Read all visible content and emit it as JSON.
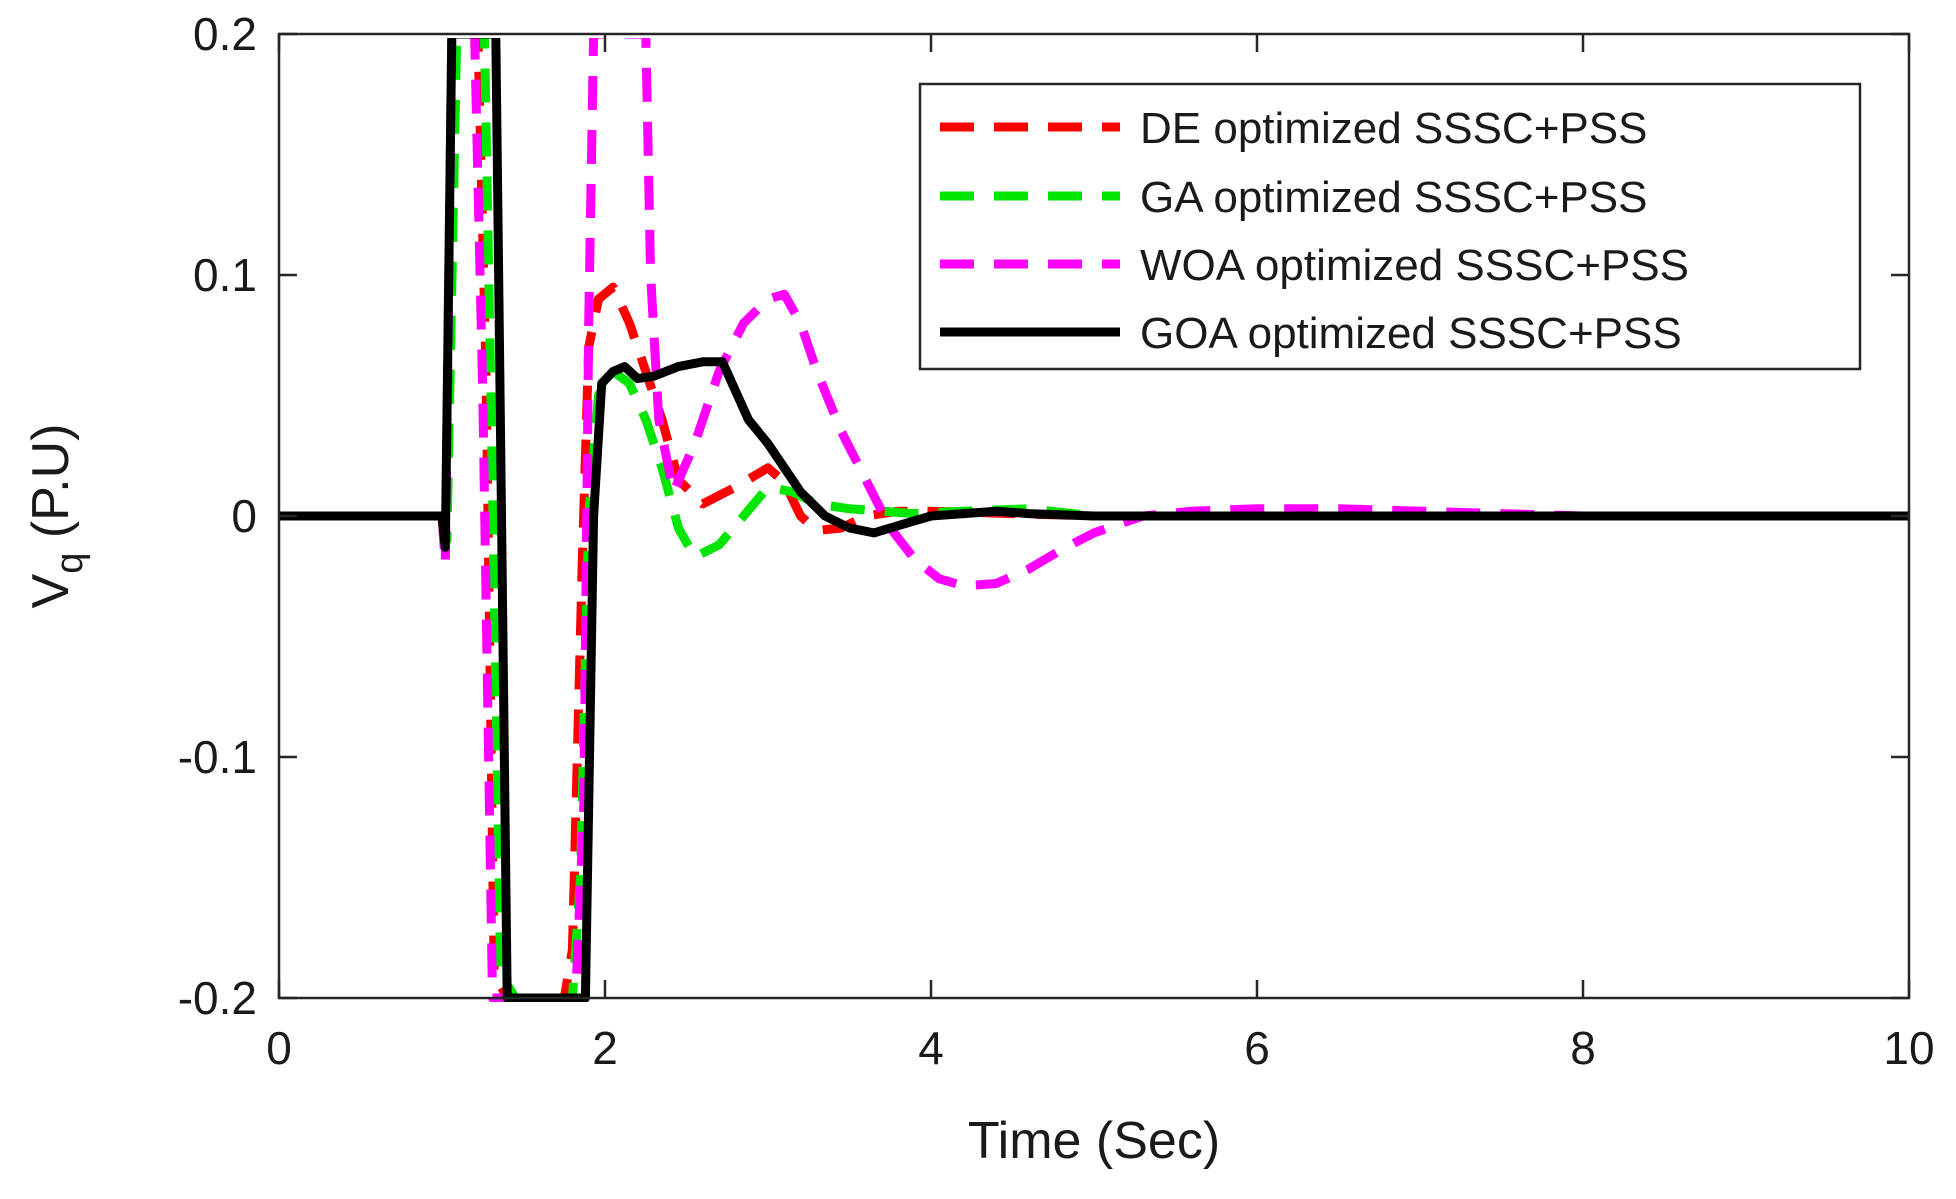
{
  "chart_data": {
    "type": "line",
    "xlabel": "Time (Sec)",
    "ylabel": {
      "main": "V",
      "sub": "q",
      "unit": "(P.U)"
    },
    "xlim": [
      0,
      10
    ],
    "ylim": [
      -0.2,
      0.2
    ],
    "xticks": [
      0,
      2,
      4,
      6,
      8,
      10
    ],
    "xtick_labels": [
      "0",
      "2",
      "4",
      "6",
      "8",
      "10"
    ],
    "yticks": [
      0.2,
      0.1,
      0,
      -0.1,
      -0.2
    ],
    "ytick_labels": [
      "0.2",
      "0.1",
      "0",
      "-0.1",
      "-0.2"
    ],
    "grid": false,
    "legend_position": "top-right",
    "series": [
      {
        "name": "DE optimized SSSC+PSS",
        "color": "#ff0000",
        "style": "dashed",
        "points": [
          [
            0,
            0
          ],
          [
            1.0,
            0
          ],
          [
            1.03,
            -0.01
          ],
          [
            1.07,
            0.2
          ],
          [
            1.22,
            0.2
          ],
          [
            1.27,
            0.06
          ],
          [
            1.32,
            -0.19
          ],
          [
            1.4,
            -0.2
          ],
          [
            1.75,
            -0.2
          ],
          [
            1.8,
            -0.18
          ],
          [
            1.86,
            -0.02
          ],
          [
            1.9,
            0.07
          ],
          [
            1.96,
            0.09
          ],
          [
            2.05,
            0.095
          ],
          [
            2.15,
            0.08
          ],
          [
            2.25,
            0.06
          ],
          [
            2.35,
            0.04
          ],
          [
            2.45,
            0.015
          ],
          [
            2.6,
            0.005
          ],
          [
            2.8,
            0.012
          ],
          [
            3.0,
            0.02
          ],
          [
            3.1,
            0.014
          ],
          [
            3.2,
            0.0
          ],
          [
            3.3,
            -0.006
          ],
          [
            3.45,
            -0.005
          ],
          [
            3.6,
            0.0
          ],
          [
            3.8,
            0.002
          ],
          [
            4.0,
            0.002
          ],
          [
            4.5,
            0.001
          ],
          [
            5.0,
            0.0
          ],
          [
            10.0,
            0.0
          ]
        ]
      },
      {
        "name": "GA optimized SSSC+PSS",
        "color": "#00e600",
        "style": "dashed",
        "points": [
          [
            0,
            0
          ],
          [
            1.0,
            0
          ],
          [
            1.03,
            -0.01
          ],
          [
            1.09,
            0.2
          ],
          [
            1.26,
            0.2
          ],
          [
            1.3,
            0.05
          ],
          [
            1.36,
            -0.19
          ],
          [
            1.45,
            -0.2
          ],
          [
            1.8,
            -0.2
          ],
          [
            1.85,
            -0.15
          ],
          [
            1.9,
            0.0
          ],
          [
            1.96,
            0.05
          ],
          [
            2.05,
            0.06
          ],
          [
            2.15,
            0.055
          ],
          [
            2.25,
            0.04
          ],
          [
            2.35,
            0.02
          ],
          [
            2.45,
            -0.005
          ],
          [
            2.55,
            -0.017
          ],
          [
            2.7,
            -0.012
          ],
          [
            2.85,
            0.0
          ],
          [
            3.0,
            0.012
          ],
          [
            3.15,
            0.01
          ],
          [
            3.3,
            0.005
          ],
          [
            3.5,
            0.003
          ],
          [
            3.7,
            0.002
          ],
          [
            3.9,
            0.001
          ],
          [
            4.2,
            0.002
          ],
          [
            4.6,
            0.003
          ],
          [
            5.0,
            0.0
          ],
          [
            10.0,
            0.0
          ]
        ]
      },
      {
        "name": "WOA optimized SSSC+PSS",
        "color": "#ff00ff",
        "style": "dashed",
        "points": [
          [
            0,
            0
          ],
          [
            1.0,
            0
          ],
          [
            1.02,
            -0.02
          ],
          [
            1.06,
            0.2
          ],
          [
            1.2,
            0.2
          ],
          [
            1.25,
            0.05
          ],
          [
            1.31,
            -0.2
          ],
          [
            1.45,
            -0.2
          ],
          [
            1.82,
            -0.2
          ],
          [
            1.87,
            -0.12
          ],
          [
            1.9,
            0.08
          ],
          [
            1.93,
            0.2
          ],
          [
            2.25,
            0.2
          ],
          [
            2.28,
            0.1
          ],
          [
            2.33,
            0.04
          ],
          [
            2.42,
            0.01
          ],
          [
            2.55,
            0.03
          ],
          [
            2.7,
            0.06
          ],
          [
            2.85,
            0.08
          ],
          [
            3.0,
            0.09
          ],
          [
            3.1,
            0.092
          ],
          [
            3.2,
            0.08
          ],
          [
            3.3,
            0.06
          ],
          [
            3.45,
            0.035
          ],
          [
            3.6,
            0.015
          ],
          [
            3.75,
            -0.005
          ],
          [
            3.9,
            -0.018
          ],
          [
            4.05,
            -0.026
          ],
          [
            4.2,
            -0.029
          ],
          [
            4.4,
            -0.028
          ],
          [
            4.6,
            -0.022
          ],
          [
            4.8,
            -0.014
          ],
          [
            5.0,
            -0.007
          ],
          [
            5.3,
            0.0
          ],
          [
            5.6,
            0.002
          ],
          [
            6.0,
            0.003
          ],
          [
            6.5,
            0.003
          ],
          [
            7.0,
            0.002
          ],
          [
            7.5,
            0.001
          ],
          [
            8.0,
            0.0
          ],
          [
            10.0,
            0.0
          ]
        ]
      },
      {
        "name": "GOA optimized SSSC+PSS",
        "color": "#000000",
        "style": "solid",
        "points": [
          [
            0,
            0
          ],
          [
            1.0,
            0
          ],
          [
            1.02,
            -0.013
          ],
          [
            1.06,
            0.2
          ],
          [
            1.33,
            0.2
          ],
          [
            1.4,
            -0.2
          ],
          [
            1.88,
            -0.2
          ],
          [
            1.93,
            0.0
          ],
          [
            1.98,
            0.055
          ],
          [
            2.05,
            0.06
          ],
          [
            2.12,
            0.062
          ],
          [
            2.2,
            0.057
          ],
          [
            2.3,
            0.058
          ],
          [
            2.45,
            0.062
          ],
          [
            2.6,
            0.064
          ],
          [
            2.72,
            0.064
          ],
          [
            2.8,
            0.052
          ],
          [
            2.88,
            0.04
          ],
          [
            3.0,
            0.03
          ],
          [
            3.1,
            0.02
          ],
          [
            3.2,
            0.01
          ],
          [
            3.35,
            0.0
          ],
          [
            3.5,
            -0.005
          ],
          [
            3.65,
            -0.007
          ],
          [
            3.8,
            -0.004
          ],
          [
            4.0,
            0.0
          ],
          [
            4.2,
            0.001
          ],
          [
            4.4,
            0.002
          ],
          [
            4.6,
            0.001
          ],
          [
            5.0,
            0.0
          ],
          [
            10.0,
            0.0
          ]
        ]
      }
    ]
  }
}
